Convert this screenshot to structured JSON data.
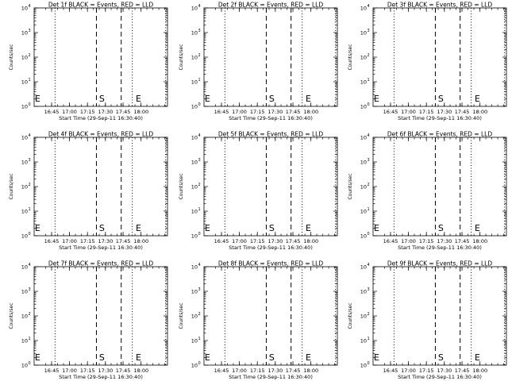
{
  "chart_data": {
    "type": "line",
    "y_scale": "log",
    "ylim": [
      1,
      10000
    ],
    "y_ticks": [
      1,
      10,
      100,
      1000,
      10000
    ],
    "y_tick_labels": [
      [
        "10",
        "0"
      ],
      [
        "10",
        "1"
      ],
      [
        "10",
        "2"
      ],
      [
        "10",
        "3"
      ],
      [
        "10",
        "4"
      ]
    ],
    "x_tick_labels": [
      "16:45",
      "17:00",
      "17:15",
      "17:30",
      "17:45",
      "18:00"
    ],
    "xlabel": "Start Time (29-Sep-11 16:30:40)",
    "ylabel": "Counts/sec",
    "grid": false,
    "markers": {
      "start_label": "S",
      "end_label": "E"
    },
    "panels": [
      {
        "title": "Det 1f BLACK = Events, RED = LLD"
      },
      {
        "title": "Det 2f BLACK = Events, RED = LLD"
      },
      {
        "title": "Det 3f BLACK = Events, RED = LLD"
      },
      {
        "title": "Det 4f BLACK = Events, RED = LLD"
      },
      {
        "title": "Det 5f BLACK = Events, RED = LLD"
      },
      {
        "title": "Det 6f BLACK = Events, RED = LLD"
      },
      {
        "title": "Det 7f BLACK = Events, RED = LLD"
      },
      {
        "title": "Det 8f BLACK = Events, RED = LLD"
      },
      {
        "title": "Det 9f BLACK = Events, RED = LLD"
      }
    ]
  }
}
